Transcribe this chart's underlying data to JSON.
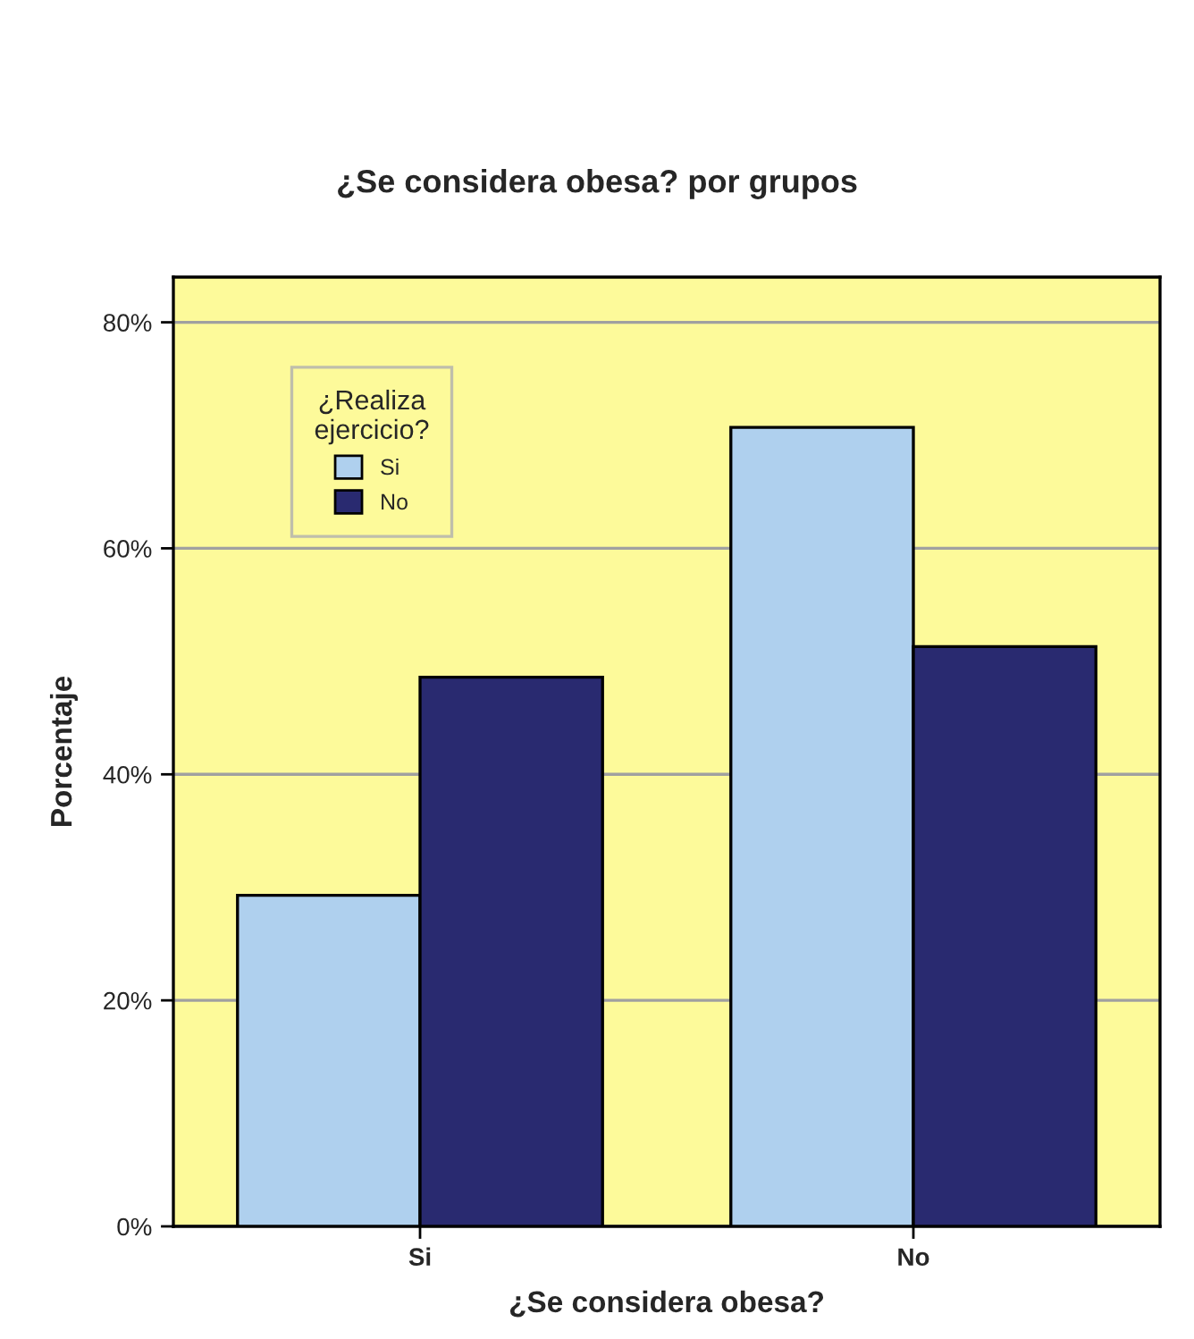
{
  "chart_data": {
    "type": "bar",
    "title": "¿Se considera obesa? por grupos",
    "xlabel": "¿Se considera obesa?",
    "ylabel": "Porcentaje",
    "legend_title": "¿Realiza\nejercicio?",
    "categories": [
      "Si",
      "No"
    ],
    "series": [
      {
        "name": "Si",
        "color": "#afd0ee",
        "values": [
          29.3,
          70.7
        ]
      },
      {
        "name": "No",
        "color": "#292a70",
        "values": [
          48.6,
          51.3
        ]
      }
    ],
    "ylim": [
      0,
      84
    ],
    "yticks": [
      {
        "value": 0,
        "label": "0%"
      },
      {
        "value": 20,
        "label": "20%"
      },
      {
        "value": 40,
        "label": "40%"
      },
      {
        "value": 60,
        "label": "60%"
      },
      {
        "value": 80,
        "label": "80%"
      }
    ],
    "grid": "y",
    "legend": "top left"
  }
}
